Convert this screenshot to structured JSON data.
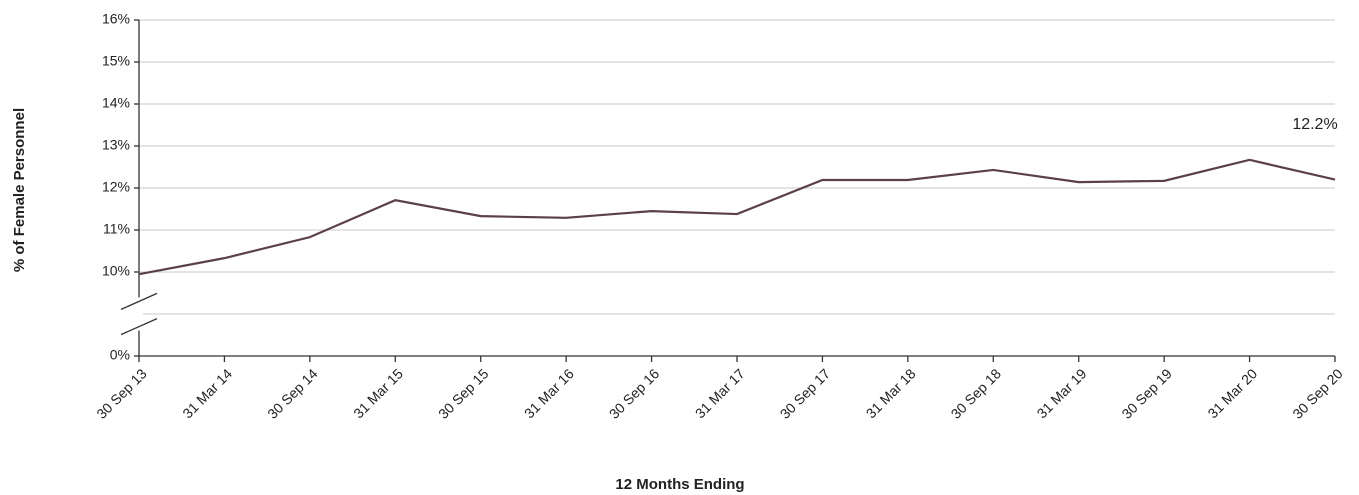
{
  "chart_data": {
    "type": "line",
    "x_label": "12 Months Ending",
    "y_label": "% of Female Personnel",
    "categories": [
      "30 Sep 13",
      "31 Mar 14",
      "30 Sep 14",
      "31 Mar 15",
      "30 Sep 15",
      "31 Mar 16",
      "30 Sep 16",
      "31 Mar 17",
      "30 Sep 17",
      "31 Mar 18",
      "30 Sep 18",
      "31 Mar 19",
      "30 Sep 19",
      "31 Mar 20",
      "30 Sep 20"
    ],
    "values": [
      9.74,
      10.33,
      10.83,
      11.71,
      11.33,
      11.29,
      11.45,
      11.38,
      12.19,
      12.19,
      12.43,
      12.14,
      12.17,
      12.67,
      12.2
    ],
    "value_labels": [
      null,
      null,
      null,
      null,
      null,
      null,
      null,
      null,
      null,
      null,
      null,
      null,
      null,
      null,
      "12.2%"
    ],
    "color": "#5b4049",
    "ylim": [
      0,
      16
    ],
    "y_break": [
      0,
      10
    ],
    "yticks": [
      {
        "value": 0,
        "label": "0%"
      },
      {
        "value": 10,
        "label": "10%"
      },
      {
        "value": 11,
        "label": "11%"
      },
      {
        "value": 12,
        "label": "12%"
      },
      {
        "value": 13,
        "label": "13%"
      },
      {
        "value": 14,
        "label": "14%"
      },
      {
        "value": 15,
        "label": "15%"
      },
      {
        "value": 16,
        "label": "16%"
      }
    ],
    "grid": true
  }
}
